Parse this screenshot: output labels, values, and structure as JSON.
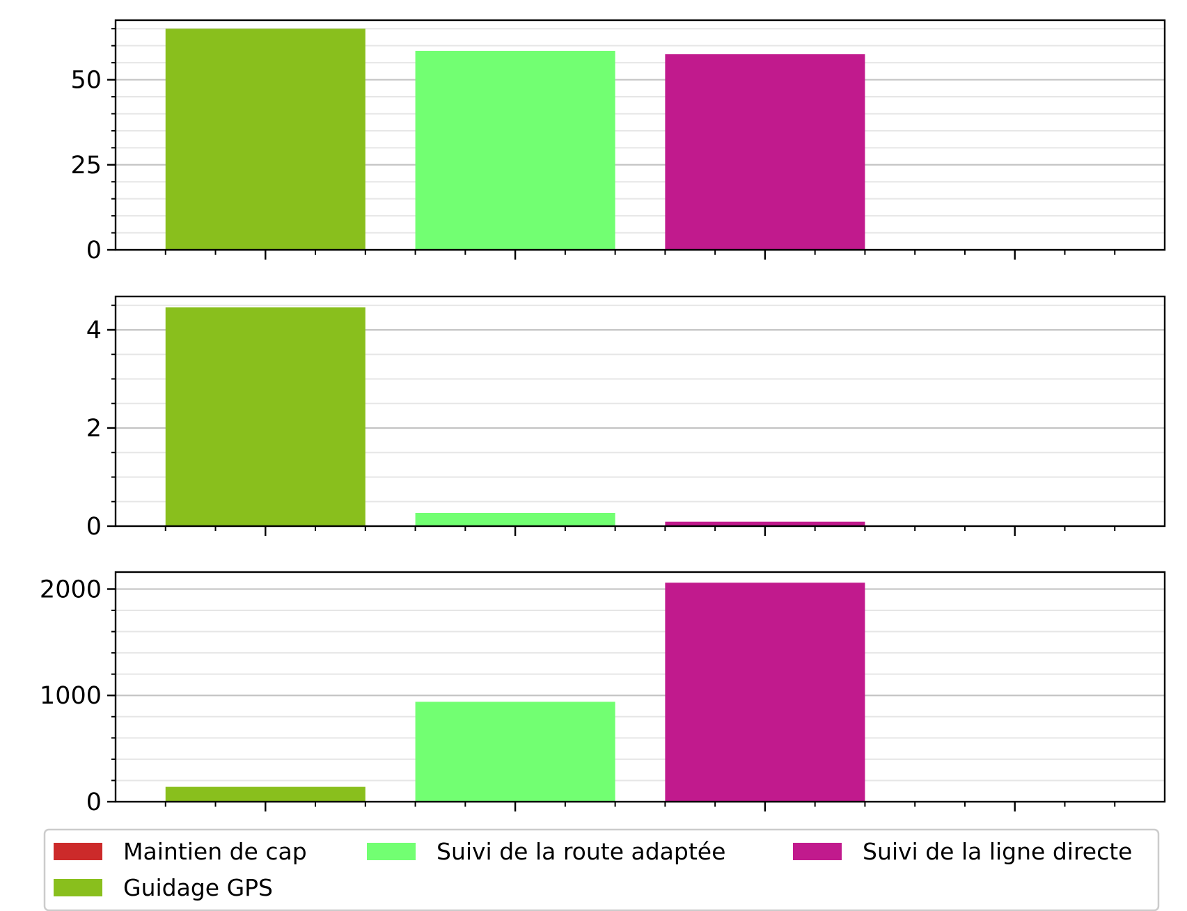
{
  "chart_data": [
    {
      "type": "bar",
      "categories": [
        "Guidage GPS",
        "Suivi de la route adaptée",
        "Suivi de la ligne directe",
        "Maintien de cap"
      ],
      "colors": [
        "#89bf1d",
        "#72ff72",
        "#c11a8d",
        "#cc2a2a"
      ],
      "values": [
        65,
        58.5,
        57.5,
        0
      ],
      "ylim": [
        0,
        67.5
      ],
      "yticks": [
        0,
        25,
        50
      ],
      "minor_step": 5,
      "grid": true
    },
    {
      "type": "bar",
      "categories": [
        "Guidage GPS",
        "Suivi de la route adaptée",
        "Suivi de la ligne directe",
        "Maintien de cap"
      ],
      "colors": [
        "#89bf1d",
        "#72ff72",
        "#c11a8d",
        "#cc2a2a"
      ],
      "values": [
        4.46,
        0.27,
        0.09,
        0
      ],
      "ylim": [
        0,
        4.68
      ],
      "yticks": [
        0,
        2,
        4
      ],
      "minor_step": 0.5,
      "grid": true
    },
    {
      "type": "bar",
      "categories": [
        "Guidage GPS",
        "Suivi de la route adaptée",
        "Suivi de la ligne directe",
        "Maintien de cap"
      ],
      "colors": [
        "#89bf1d",
        "#72ff72",
        "#c11a8d",
        "#cc2a2a"
      ],
      "values": [
        140,
        940,
        2060,
        0
      ],
      "ylim": [
        0,
        2160
      ],
      "yticks": [
        0,
        1000,
        2000
      ],
      "minor_step": 200,
      "grid": true
    }
  ],
  "legend": {
    "placement": "bottom",
    "entries": [
      {
        "label": "Maintien de cap",
        "color": "#cc2a2a"
      },
      {
        "label": "Suivi de la route adaptée",
        "color": "#72ff72"
      },
      {
        "label": "Suivi de la ligne directe",
        "color": "#c11a8d"
      },
      {
        "label": "Guidage GPS",
        "color": "#89bf1d"
      }
    ]
  }
}
